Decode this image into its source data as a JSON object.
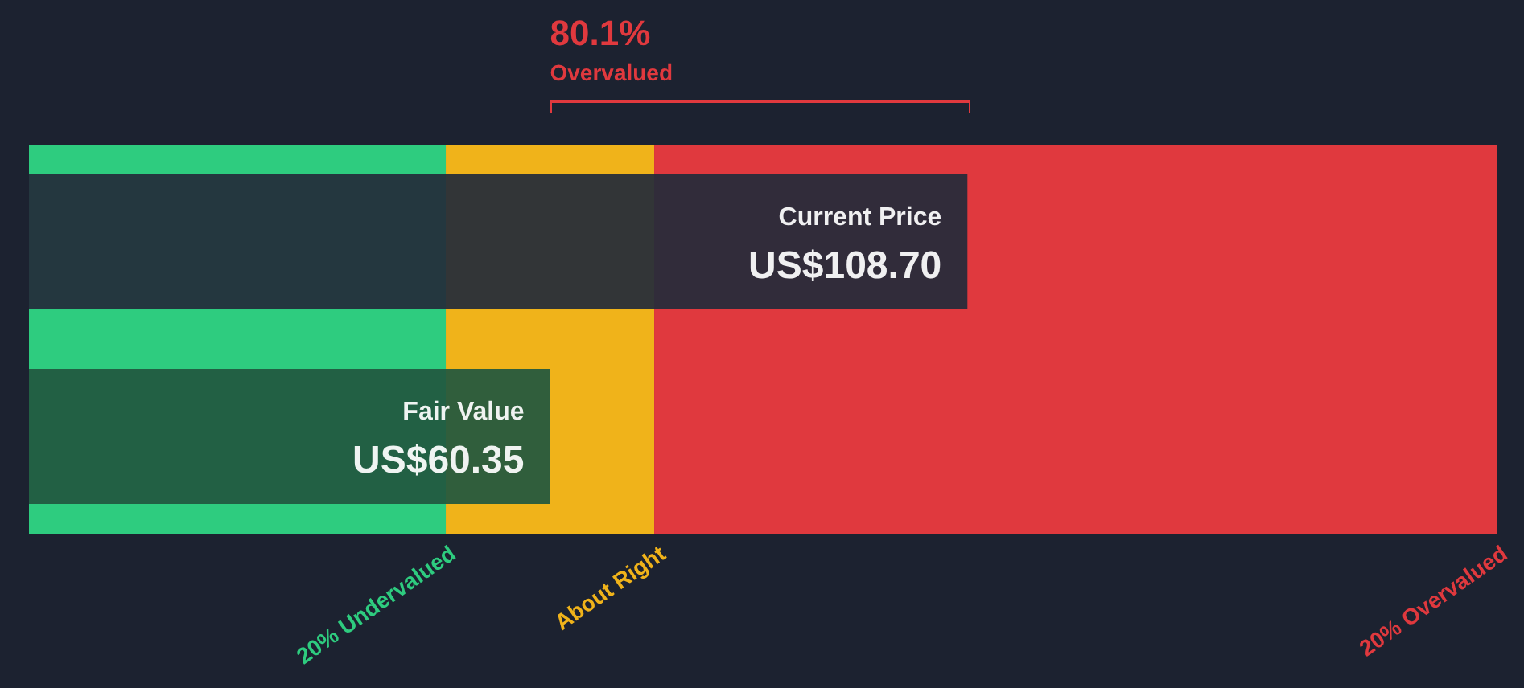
{
  "chart_data": {
    "type": "bar",
    "orientation": "horizontal",
    "categories": [
      "Current Price",
      "Fair Value"
    ],
    "values": [
      108.7,
      60.35
    ],
    "colors": [
      "#232b3a",
      "#21573f"
    ],
    "value_labels": [
      "US$108.70",
      "US$60.35"
    ],
    "xlim": [
      0,
      170
    ],
    "bands": [
      {
        "axis": "x",
        "from": 0,
        "to": 48.28,
        "label": "20% Undervalued",
        "color": "#2ecc7f"
      },
      {
        "axis": "x",
        "from": 48.28,
        "to": 72.42,
        "label": "About Right",
        "color": "#f0b31a"
      },
      {
        "axis": "x",
        "from": 72.42,
        "to": 170,
        "label": "20% Overvalued",
        "color": "#e0393e"
      }
    ],
    "annotations": [
      "80.1%",
      "Overvalued"
    ]
  }
}
